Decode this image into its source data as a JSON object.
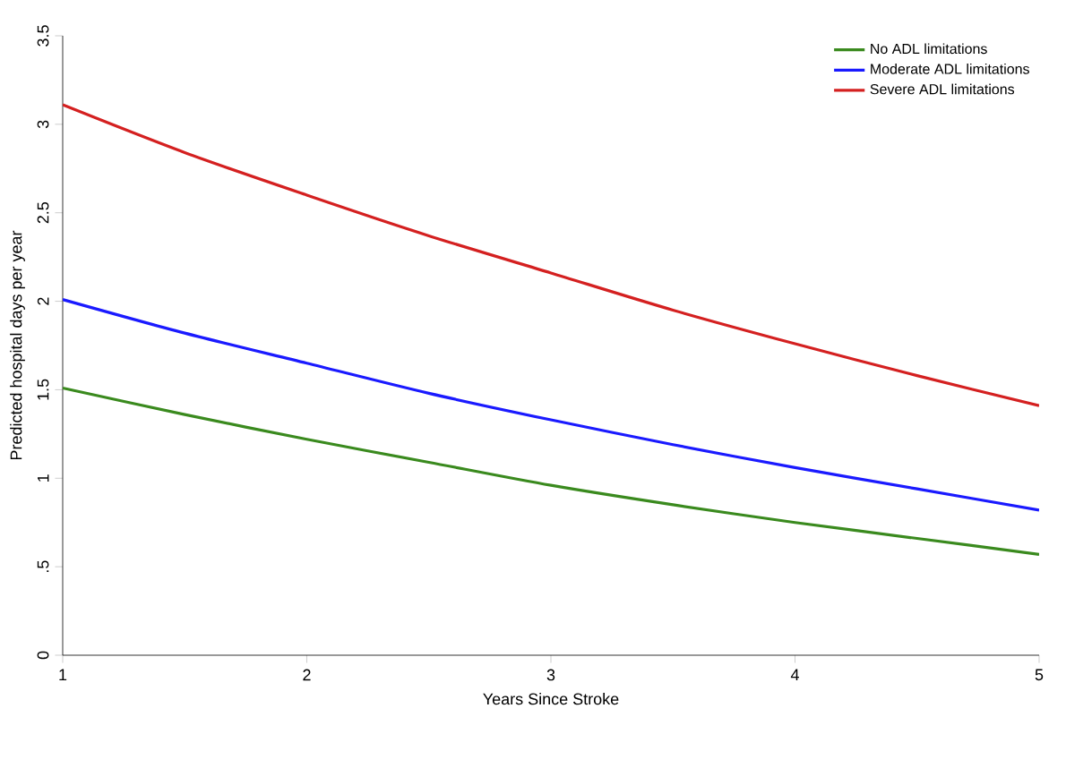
{
  "chart_data": {
    "type": "line",
    "xlabel": "Years Since Stroke",
    "ylabel": "Predicted hospital days per year",
    "x": [
      1,
      1.5,
      2,
      2.5,
      3,
      3.5,
      4,
      4.5,
      5
    ],
    "series": [
      {
        "name": "No ADL limitations",
        "color": "#3a8a1e",
        "values": [
          1.51,
          1.36,
          1.22,
          1.09,
          0.96,
          0.85,
          0.75,
          0.66,
          0.57
        ]
      },
      {
        "name": "Moderate ADL limitations",
        "color": "#1a1aff",
        "values": [
          2.01,
          1.82,
          1.65,
          1.48,
          1.33,
          1.19,
          1.06,
          0.94,
          0.82
        ]
      },
      {
        "name": "Severe ADL limitations",
        "color": "#d42020",
        "values": [
          3.11,
          2.84,
          2.6,
          2.37,
          2.16,
          1.95,
          1.76,
          1.58,
          1.41
        ]
      }
    ],
    "xlim": [
      1,
      5
    ],
    "xticks": [
      1,
      2,
      3,
      4,
      5
    ],
    "ylim": [
      0,
      3.5
    ],
    "yticks": [
      0,
      {
        "value": 0.5,
        "label": ".5"
      },
      1,
      1.5,
      2,
      2.5,
      3,
      3.5
    ],
    "legend": "top right",
    "grid": false,
    "marker": "none",
    "line_style": "solid"
  }
}
